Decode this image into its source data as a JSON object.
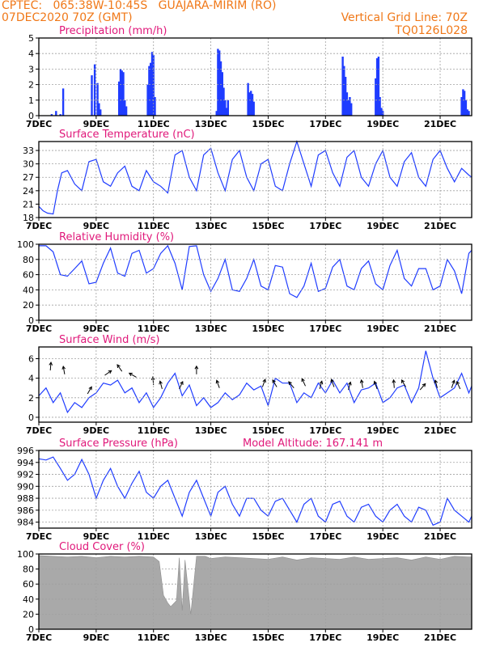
{
  "header": {
    "line1_left": "CPTEC:   065:38W-10:45S   GUAJARA-MIRIM (RO)",
    "line2_left": "07DEC2020 70Z (GMT)",
    "line2_right": "Vertical Grid Line: 70Z",
    "line3_right": "TQ0126L028"
  },
  "colors": {
    "header": "#f07818",
    "title": "#e0187a",
    "data": "#1f3cff",
    "cloud": "#a9a9a9",
    "grid": "#a0a0a0",
    "frame": "#000000"
  },
  "x_axis": {
    "labels": [
      "7DEC",
      "9DEC",
      "11DEC",
      "13DEC",
      "15DEC",
      "17DEC",
      "19DEC",
      "21DEC"
    ],
    "start_day": 7,
    "end_day": 22.1
  },
  "chart_data": [
    {
      "type": "bar",
      "title": "Precipitation (mm/h)",
      "ylim": [
        0,
        5
      ],
      "yticks": [
        0,
        1,
        2,
        3,
        4,
        5
      ],
      "series": [
        {
          "x": [
            7.45,
            7.6,
            7.75,
            7.85,
            8.85,
            8.95,
            9.05,
            9.1,
            9.15,
            9.8,
            9.85,
            9.9,
            9.95,
            10.0,
            10.05,
            10.8,
            10.85,
            10.9,
            10.95,
            11.0,
            11.05,
            13.2,
            13.25,
            13.3,
            13.35,
            13.4,
            13.45,
            13.5,
            13.55,
            13.6,
            14.3,
            14.35,
            14.4,
            14.45,
            14.5,
            17.6,
            17.65,
            17.7,
            17.75,
            17.8,
            17.85,
            17.9,
            18.75,
            18.8,
            18.85,
            18.9,
            18.95,
            19.0,
            21.75,
            21.8,
            21.85,
            21.9,
            21.95,
            22.0
          ],
          "values": [
            0.1,
            0.3,
            0.1,
            1.75,
            2.6,
            3.3,
            2.1,
            0.8,
            0.4,
            2.2,
            3.0,
            2.9,
            2.8,
            1.0,
            0.6,
            2.0,
            3.2,
            3.4,
            4.1,
            3.9,
            1.2,
            0.3,
            4.3,
            4.2,
            3.5,
            2.8,
            1.8,
            1.0,
            0.5,
            1.0,
            2.1,
            1.5,
            1.6,
            1.4,
            0.9,
            3.8,
            3.2,
            2.5,
            1.5,
            1.0,
            1.2,
            0.8,
            2.4,
            3.7,
            3.8,
            1.2,
            0.5,
            0.3,
            1.2,
            1.7,
            1.6,
            1.0,
            0.4,
            0.3
          ]
        }
      ]
    },
    {
      "type": "line",
      "title": "Surface Temperature (nC)",
      "ylim": [
        18,
        35
      ],
      "yticks": [
        18,
        21,
        24,
        27,
        30,
        33
      ],
      "series": [
        {
          "x": [
            7.0,
            7.15,
            7.3,
            7.5,
            7.65,
            7.8,
            8.0,
            8.25,
            8.5,
            8.75,
            9.0,
            9.25,
            9.5,
            9.75,
            10.0,
            10.25,
            10.5,
            10.75,
            11.0,
            11.25,
            11.5,
            11.75,
            12.0,
            12.25,
            12.5,
            12.75,
            13.0,
            13.25,
            13.5,
            13.75,
            14.0,
            14.25,
            14.5,
            14.75,
            15.0,
            15.25,
            15.5,
            15.75,
            16.0,
            16.25,
            16.5,
            16.75,
            17.0,
            17.25,
            17.5,
            17.75,
            18.0,
            18.25,
            18.5,
            18.75,
            19.0,
            19.25,
            19.5,
            19.75,
            20.0,
            20.25,
            20.5,
            20.75,
            21.0,
            21.25,
            21.5,
            21.75,
            22.0,
            22.1
          ],
          "values": [
            20.5,
            19.5,
            19,
            18.8,
            24,
            28,
            28.5,
            25.5,
            24,
            30.5,
            31,
            26,
            25,
            28,
            29.5,
            25,
            24,
            28.5,
            26,
            25,
            23.5,
            32,
            33,
            27,
            24,
            32,
            33.5,
            28,
            24,
            31,
            33,
            27,
            24,
            30,
            31,
            25,
            24,
            30,
            35,
            30,
            25,
            32,
            33,
            28,
            25,
            31.5,
            33,
            27,
            25,
            30,
            33,
            27,
            25,
            30.5,
            32.5,
            27,
            25,
            31,
            33,
            29,
            26,
            29,
            27.5,
            27
          ]
        }
      ]
    },
    {
      "type": "line",
      "title": "Relative Humidity (%)",
      "ylim": [
        0,
        100
      ],
      "yticks": [
        0,
        20,
        40,
        60,
        80,
        100
      ],
      "series": [
        {
          "x": [
            7.0,
            7.25,
            7.5,
            7.75,
            8.0,
            8.25,
            8.5,
            8.75,
            9.0,
            9.25,
            9.5,
            9.75,
            10.0,
            10.25,
            10.5,
            10.75,
            11.0,
            11.25,
            11.5,
            11.75,
            12.0,
            12.25,
            12.5,
            12.75,
            13.0,
            13.25,
            13.5,
            13.75,
            14.0,
            14.25,
            14.5,
            14.75,
            15.0,
            15.25,
            15.5,
            15.75,
            16.0,
            16.25,
            16.5,
            16.75,
            17.0,
            17.25,
            17.5,
            17.75,
            18.0,
            18.25,
            18.5,
            18.75,
            19.0,
            19.25,
            19.5,
            19.75,
            20.0,
            20.25,
            20.5,
            20.75,
            21.0,
            21.25,
            21.5,
            21.75,
            22.0,
            22.1
          ],
          "values": [
            98,
            98,
            90,
            60,
            58,
            68,
            78,
            48,
            50,
            75,
            95,
            62,
            58,
            88,
            92,
            62,
            68,
            88,
            98,
            75,
            40,
            97,
            98,
            60,
            38,
            55,
            80,
            40,
            38,
            55,
            80,
            45,
            40,
            72,
            70,
            35,
            30,
            45,
            75,
            38,
            42,
            70,
            80,
            45,
            40,
            68,
            78,
            48,
            40,
            72,
            92,
            55,
            45,
            68,
            68,
            40,
            45,
            80,
            65,
            35,
            88,
            92
          ]
        }
      ]
    },
    {
      "type": "line",
      "title": "Surface Wind (m/s)",
      "ylim": [
        -0.5,
        7.2
      ],
      "yticks": [
        0,
        2,
        4,
        6
      ],
      "series": [
        {
          "x": [
            7.0,
            7.25,
            7.5,
            7.75,
            8.0,
            8.25,
            8.5,
            8.75,
            9.0,
            9.25,
            9.5,
            9.75,
            10.0,
            10.25,
            10.5,
            10.75,
            11.0,
            11.25,
            11.5,
            11.75,
            12.0,
            12.25,
            12.5,
            12.75,
            13.0,
            13.25,
            13.5,
            13.75,
            14.0,
            14.25,
            14.5,
            14.75,
            15.0,
            15.25,
            15.5,
            15.75,
            16.0,
            16.25,
            16.5,
            16.75,
            17.0,
            17.25,
            17.5,
            17.75,
            18.0,
            18.25,
            18.5,
            18.75,
            19.0,
            19.25,
            19.5,
            19.75,
            20.0,
            20.25,
            20.5,
            20.75,
            21.0,
            21.25,
            21.5,
            21.75,
            22.0,
            22.1
          ],
          "values": [
            2.2,
            3,
            1.5,
            2.5,
            0.5,
            1.5,
            1,
            2,
            2.5,
            3.5,
            3.3,
            3.8,
            2.5,
            3,
            1.5,
            2.5,
            1,
            2,
            3.5,
            4.5,
            2.2,
            3.3,
            1.2,
            2,
            1,
            1.5,
            2.5,
            1.8,
            2.3,
            3.5,
            2.8,
            3.2,
            1.2,
            4,
            3.5,
            3.5,
            1.5,
            2.5,
            2,
            3.5,
            2.5,
            3.8,
            2.5,
            3.5,
            1.5,
            2.8,
            3,
            3.5,
            1.5,
            2,
            3,
            3.3,
            1.5,
            3,
            6.8,
            4,
            2,
            2.5,
            3,
            4.5,
            2.5,
            3.2
          ]
        }
      ],
      "arrows": [
        [
          7.4,
          4.8,
          5
        ],
        [
          7.9,
          4.4,
          -10
        ],
        [
          8.7,
          2.4,
          30
        ],
        [
          9.3,
          4.3,
          55
        ],
        [
          9.9,
          4.7,
          -35
        ],
        [
          10.4,
          4.1,
          -60
        ],
        [
          11.0,
          3.3,
          -5
        ],
        [
          11.3,
          2.9,
          -15
        ],
        [
          11.9,
          2.9,
          25
        ],
        [
          12.5,
          4.4,
          0
        ],
        [
          13.3,
          3.0,
          -20
        ],
        [
          14.8,
          3.1,
          20
        ],
        [
          15.3,
          3.1,
          -30
        ],
        [
          15.9,
          3.0,
          -40
        ],
        [
          16.3,
          3.2,
          -25
        ],
        [
          16.8,
          2.9,
          15
        ],
        [
          17.3,
          3.1,
          -20
        ],
        [
          17.8,
          2.8,
          15
        ],
        [
          18.3,
          3.0,
          -10
        ],
        [
          18.8,
          2.9,
          -20
        ],
        [
          19.4,
          3.0,
          -5
        ],
        [
          19.8,
          3.1,
          -30
        ],
        [
          20.3,
          2.8,
          40
        ],
        [
          20.9,
          3.0,
          -15
        ],
        [
          21.4,
          3.0,
          20
        ],
        [
          21.7,
          2.9,
          -25
        ]
      ]
    },
    {
      "type": "line",
      "title": "Surface Pressure (hPa)",
      "annotation": "Model Altitude: 167.141 m",
      "ylim": [
        983,
        996
      ],
      "yticks": [
        984,
        986,
        988,
        990,
        992,
        994,
        996
      ],
      "series": [
        {
          "x": [
            7.0,
            7.25,
            7.5,
            7.75,
            8.0,
            8.25,
            8.5,
            8.75,
            9.0,
            9.25,
            9.5,
            9.75,
            10.0,
            10.25,
            10.5,
            10.75,
            11.0,
            11.25,
            11.5,
            11.75,
            12.0,
            12.25,
            12.5,
            12.75,
            13.0,
            13.25,
            13.5,
            13.75,
            14.0,
            14.25,
            14.5,
            14.75,
            15.0,
            15.25,
            15.5,
            15.75,
            16.0,
            16.25,
            16.5,
            16.75,
            17.0,
            17.25,
            17.5,
            17.75,
            18.0,
            18.25,
            18.5,
            18.75,
            19.0,
            19.25,
            19.5,
            19.75,
            20.0,
            20.25,
            20.5,
            20.75,
            21.0,
            21.25,
            21.5,
            21.75,
            22.0,
            22.1
          ],
          "values": [
            994.6,
            994.4,
            994.9,
            993,
            991,
            992,
            994.5,
            992,
            988,
            991,
            993,
            990,
            988,
            990.5,
            992.5,
            989,
            988,
            990,
            991,
            988,
            985,
            989,
            991,
            988,
            985,
            989,
            990,
            987,
            985,
            988,
            988,
            986,
            985,
            987.5,
            988,
            986,
            984,
            987,
            988,
            985,
            984,
            987,
            987.5,
            985,
            984,
            986.5,
            987,
            985,
            984,
            986,
            987,
            985,
            984,
            986.5,
            986,
            983.5,
            984,
            988,
            986,
            985,
            984,
            985
          ]
        }
      ]
    },
    {
      "type": "area",
      "title": "Cloud Cover (%)",
      "ylim": [
        0,
        100
      ],
      "yticks": [
        0,
        20,
        40,
        60,
        80,
        100
      ],
      "series": [
        {
          "x": [
            7.0,
            7.5,
            8.0,
            8.5,
            9.0,
            9.5,
            10.0,
            10.5,
            11.0,
            11.2,
            11.35,
            11.5,
            11.6,
            11.8,
            11.9,
            12.0,
            12.1,
            12.3,
            12.5,
            12.8,
            13.0,
            13.5,
            14.0,
            14.5,
            15.0,
            15.5,
            16.0,
            16.5,
            17.0,
            17.5,
            18.0,
            18.5,
            19.0,
            19.5,
            20.0,
            20.5,
            21.0,
            21.5,
            22.0,
            22.1
          ],
          "values": [
            98,
            97,
            96,
            97,
            95,
            97,
            96,
            97,
            96,
            90,
            45,
            35,
            30,
            38,
            95,
            25,
            92,
            20,
            97,
            97,
            94,
            96,
            95,
            94,
            93,
            96,
            92,
            95,
            94,
            93,
            96,
            93,
            94,
            95,
            92,
            96,
            93,
            97,
            96,
            96
          ]
        }
      ]
    }
  ]
}
